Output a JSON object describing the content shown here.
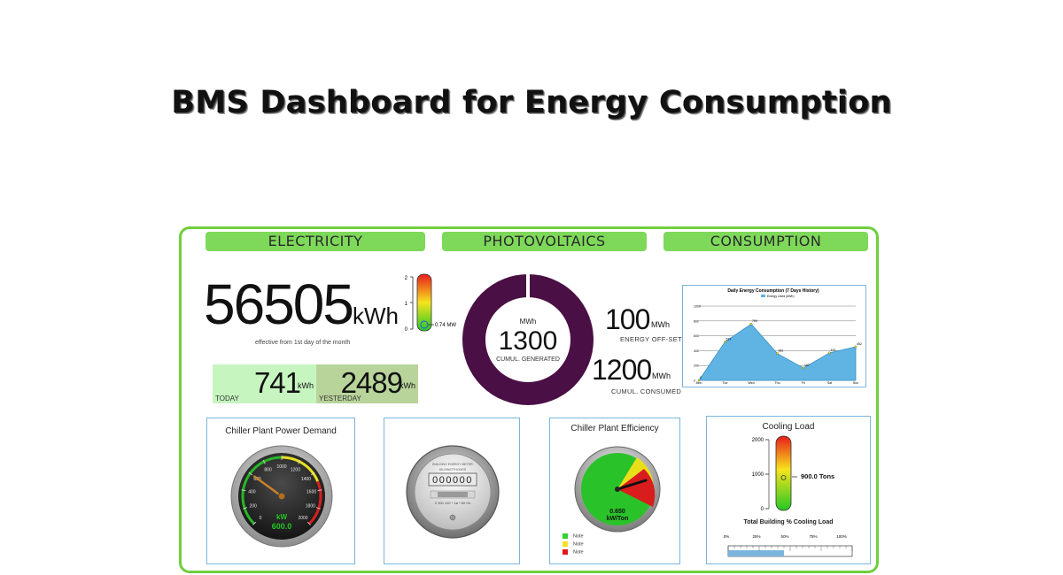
{
  "title": "BMS Dashboard for Energy Consumption",
  "tabs": [
    "ELECTRICITY",
    "PHOTOVOLTAICS",
    "CONSUMPTION"
  ],
  "electricity": {
    "total_value": "56505",
    "total_unit": "kWh",
    "total_note": "effective from 1st day of the month",
    "today_value": "741",
    "today_unit": "kWh",
    "today_label": "TODAY",
    "yesterday_value": "2489",
    "yesterday_unit": "kWh",
    "yesterday_label": "YESTERDAY",
    "demand_gauge": {
      "ticks": [
        "2",
        "1",
        "0"
      ],
      "readout": "0.74 MW",
      "level": 0.37
    }
  },
  "photovoltaics": {
    "donut_unit": "MWh",
    "donut_value": "1300",
    "donut_label": "CUMUL. GENERATED",
    "offset_value": "100",
    "offset_unit": "MWh",
    "offset_label": "ENERGY OFF-SET",
    "consumed_value": "1200",
    "consumed_unit": "MWh",
    "consumed_label": "CUMUL. CONSUMED",
    "ring_color": "#4a0f44"
  },
  "chart_data": {
    "type": "area",
    "title": "Daily Energy Consumption (7 Days History)",
    "legend": "Energy Used (kWh)",
    "categories": [
      "Mon",
      "Tue",
      "Wed",
      "Thu",
      "Fri",
      "Sat",
      "Sun"
    ],
    "values": [
      0,
      519,
      759,
      361,
      167,
      370,
      452
    ],
    "yticks": [
      "0",
      "200",
      "400",
      "600",
      "800",
      "1000"
    ],
    "ylim": [
      0,
      1000
    ],
    "fill_color": "#5fb4e3",
    "grid": true
  },
  "panels": {
    "chiller_demand": {
      "title": "Chiller Plant Power Demand",
      "ticks": [
        "0",
        "200",
        "400",
        "600",
        "800",
        "1000",
        "1200",
        "1400",
        "1600",
        "1800",
        "2000"
      ],
      "unit": "kW",
      "readout": "600.0",
      "value": 600,
      "max": 2000
    },
    "meter": {
      "header": "BUILDING ENERGY METER",
      "sub": "KILOWATTHOURS",
      "digits": "000000",
      "footer": "2 200 100 * 1ø * 60 Hz"
    },
    "chiller_efficiency": {
      "title": "Chiller Plant Efficiency",
      "readout": "0.650",
      "unit": "kW/Ton",
      "legend": [
        {
          "label": "Note",
          "color": "#2fd12f"
        },
        {
          "label": "Note",
          "color": "#f2e21c"
        },
        {
          "label": "Note",
          "color": "#e01a1a"
        }
      ]
    },
    "cooling_load": {
      "title": "Cooling Load",
      "ticks": [
        "2000",
        "1000",
        "0"
      ],
      "readout": "900.0 Tons",
      "level": 0.45,
      "subtitle": "Total Building % Cooling Load",
      "pct_ticks": [
        "0%",
        "25%",
        "50%",
        "75%",
        "100%"
      ],
      "pct_value": 0.45
    }
  }
}
